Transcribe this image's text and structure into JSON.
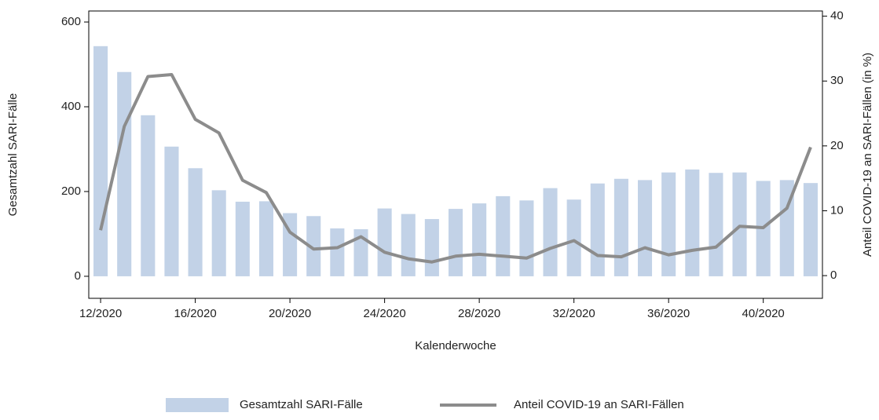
{
  "chart_data": {
    "type": "bar_line",
    "x_label": "Kalenderwoche",
    "y_label": "Gesamtzahl SARI-Fälle",
    "y2_label": "Anteil COVID-19 an SARI-Fällen (in %)",
    "categories": [
      "12/2020",
      null,
      null,
      null,
      "16/2020",
      null,
      null,
      null,
      "20/2020",
      null,
      null,
      null,
      "24/2020",
      null,
      null,
      null,
      "28/2020",
      null,
      null,
      null,
      "32/2020",
      null,
      null,
      null,
      "36/2020",
      null,
      null,
      null,
      "40/2020",
      null,
      null
    ],
    "series": [
      {
        "name": "Gesamtzahl SARI-Fälle",
        "type": "bar",
        "color": "#c2d2e7",
        "values": [
          543,
          482,
          380,
          306,
          255,
          203,
          176,
          177,
          149,
          142,
          113,
          111,
          160,
          147,
          135,
          159,
          172,
          189,
          179,
          208,
          181,
          219,
          230,
          227,
          245,
          252,
          244,
          245,
          225,
          227,
          220
        ]
      },
      {
        "name": "Anteil COVID-19 an SARI-Fällen",
        "type": "line",
        "axis": "y2",
        "color": "#8c8c8c",
        "values": [
          7,
          23,
          30.7,
          31,
          24.1,
          22,
          14.7,
          12.8,
          6.7,
          4.1,
          4.3,
          6,
          3.6,
          2.6,
          2.1,
          3,
          3.3,
          3,
          2.7,
          4.2,
          5.4,
          3.1,
          2.9,
          4.3,
          3.2,
          3.9,
          4.4,
          7.6,
          7.4,
          10.4,
          19.8
        ]
      }
    ],
    "ylim": [
      -52,
      626
    ],
    "yticks": [
      0,
      200,
      400,
      600
    ],
    "y2lim": [
      -3.5,
      40.8
    ],
    "y2ticks": [
      0,
      10,
      20,
      30,
      40
    ],
    "legend": "bottom"
  }
}
